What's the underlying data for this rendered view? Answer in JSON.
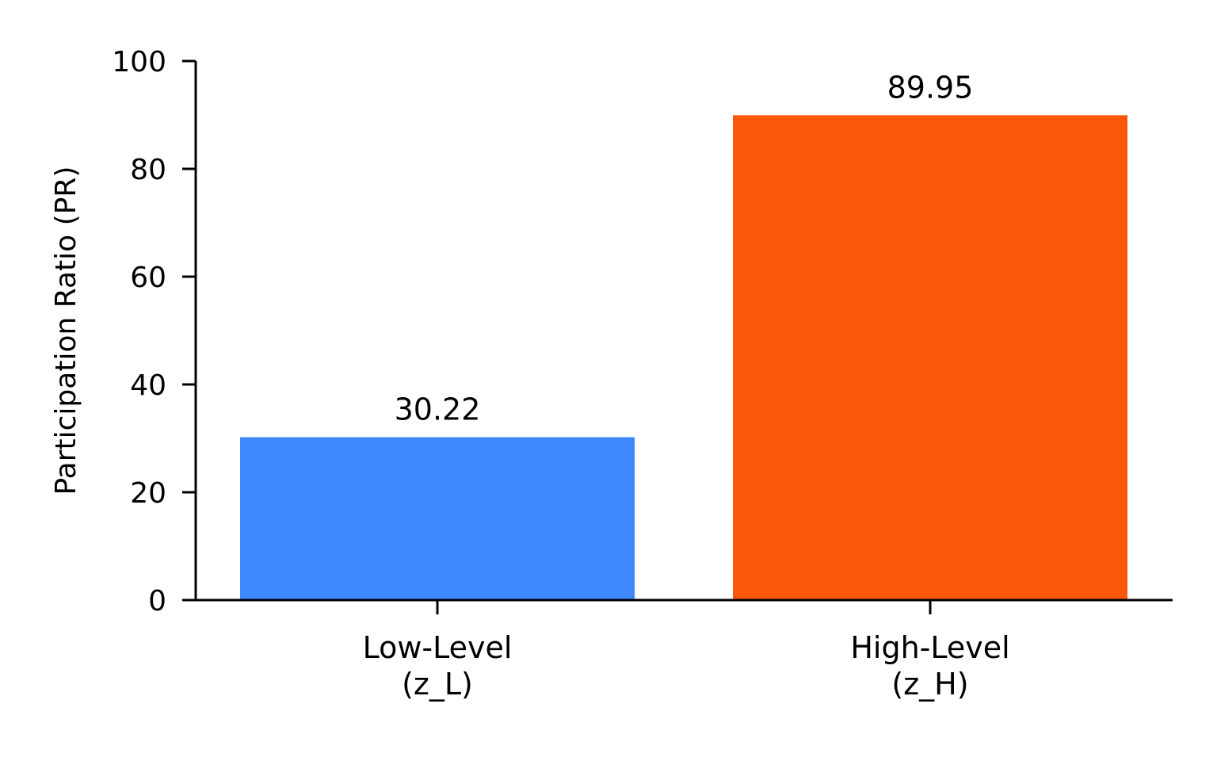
{
  "chart_data": {
    "type": "bar",
    "title": "",
    "ylabel": "Participation Ratio (PR)",
    "xlabel": "",
    "ylim": [
      0,
      100
    ],
    "yticks": [
      0,
      20,
      40,
      60,
      80,
      100
    ],
    "grid": false,
    "legend": "none",
    "categories": [
      [
        "Low-Level",
        "(z_L)"
      ],
      [
        "High-Level",
        "(z_H)"
      ]
    ],
    "values": [
      30.22,
      89.95
    ],
    "data_labels": [
      "30.22",
      "89.95"
    ],
    "colors": [
      "#3d88fe",
      "#fb570b"
    ]
  }
}
